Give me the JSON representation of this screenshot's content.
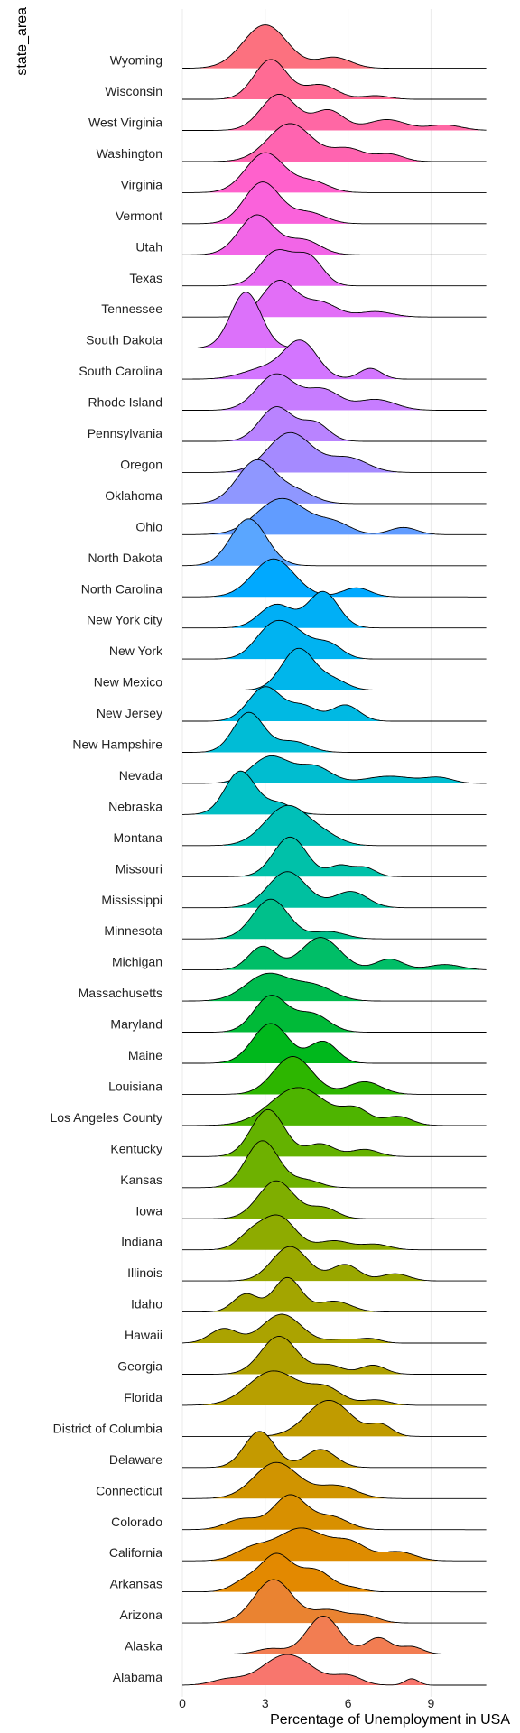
{
  "chart_data": {
    "type": "ridgeline",
    "title": "",
    "xlabel": "Percentage of Unemployment in USA",
    "ylabel": "state_area",
    "xlim": [
      0,
      11
    ],
    "x_ticks": [
      0,
      3,
      6,
      9
    ],
    "grid": true,
    "legend": "none",
    "series": [
      {
        "name": "Alabama",
        "color": "#F8766D",
        "peaks": [
          [
            1.6,
            0.15,
            0.55
          ],
          [
            3.8,
            0.85,
            0.9
          ],
          [
            6,
            0.25,
            0.5
          ],
          [
            8.3,
            0.18,
            0.25
          ]
        ]
      },
      {
        "name": "Alaska",
        "color": "#F27D52",
        "peaks": [
          [
            3.2,
            0.15,
            0.5
          ],
          [
            5.1,
            1.05,
            0.6
          ],
          [
            7.1,
            0.45,
            0.45
          ],
          [
            8.3,
            0.2,
            0.4
          ]
        ]
      },
      {
        "name": "Arizona",
        "color": "#EA8331",
        "peaks": [
          [
            3.3,
            1.2,
            0.7
          ],
          [
            5.3,
            0.35,
            0.6
          ],
          [
            6.6,
            0.2,
            0.5
          ]
        ]
      },
      {
        "name": "Arkansas",
        "color": "#E38900",
        "peaks": [
          [
            2.3,
            0.3,
            0.5
          ],
          [
            3.4,
            1.0,
            0.55
          ],
          [
            4.8,
            0.6,
            0.6
          ],
          [
            6.2,
            0.1,
            0.4
          ]
        ]
      },
      {
        "name": "California",
        "color": "#DE8C00",
        "peaks": [
          [
            2.5,
            0.3,
            0.6
          ],
          [
            4.3,
            0.9,
            0.9
          ],
          [
            6.1,
            0.45,
            0.6
          ],
          [
            7.8,
            0.25,
            0.6
          ]
        ]
      },
      {
        "name": "Colorado",
        "color": "#D89000",
        "peaks": [
          [
            2.2,
            0.3,
            0.6
          ],
          [
            3.9,
            0.95,
            0.6
          ],
          [
            5.4,
            0.35,
            0.6
          ]
        ]
      },
      {
        "name": "Connecticut",
        "color": "#D09400",
        "peaks": [
          [
            3.4,
            1.0,
            0.8
          ],
          [
            5.6,
            0.35,
            0.7
          ]
        ]
      },
      {
        "name": "Delaware",
        "color": "#C49A00",
        "peaks": [
          [
            2.8,
            1.0,
            0.55
          ],
          [
            5.0,
            0.5,
            0.55
          ]
        ]
      },
      {
        "name": "District of Columbia",
        "color": "#C09B00",
        "peaks": [
          [
            5.3,
            1.0,
            0.8
          ],
          [
            7.2,
            0.3,
            0.4
          ]
        ]
      },
      {
        "name": "Florida",
        "color": "#B79F00",
        "peaks": [
          [
            3.3,
            0.95,
            0.9
          ],
          [
            5.2,
            0.45,
            0.6
          ],
          [
            7,
            0.15,
            0.5
          ]
        ]
      },
      {
        "name": "Georgia",
        "color": "#AFA100",
        "peaks": [
          [
            3.5,
            1.05,
            0.65
          ],
          [
            5.3,
            0.25,
            0.5
          ],
          [
            6.9,
            0.25,
            0.45
          ]
        ]
      },
      {
        "name": "Hawaii",
        "color": "#ABA300",
        "peaks": [
          [
            1.5,
            0.4,
            0.5
          ],
          [
            3.6,
            0.8,
            0.7
          ],
          [
            5.8,
            0.1,
            0.5
          ],
          [
            6.8,
            0.12,
            0.4
          ]
        ]
      },
      {
        "name": "Idaho",
        "color": "#A3A500",
        "peaks": [
          [
            2.3,
            0.5,
            0.45
          ],
          [
            3.8,
            0.95,
            0.5
          ],
          [
            5.5,
            0.3,
            0.6
          ]
        ]
      },
      {
        "name": "Illinois",
        "color": "#9AA800",
        "peaks": [
          [
            3.9,
            0.95,
            0.65
          ],
          [
            5.9,
            0.45,
            0.5
          ],
          [
            7.7,
            0.2,
            0.5
          ]
        ]
      },
      {
        "name": "Indiana",
        "color": "#8EAB00",
        "peaks": [
          [
            2.5,
            0.4,
            0.5
          ],
          [
            3.5,
            0.9,
            0.6
          ],
          [
            5.5,
            0.25,
            0.6
          ],
          [
            7,
            0.15,
            0.5
          ]
        ]
      },
      {
        "name": "Iowa",
        "color": "#7FAE00",
        "peaks": [
          [
            3.4,
            1.05,
            0.65
          ],
          [
            5.1,
            0.3,
            0.5
          ]
        ]
      },
      {
        "name": "Kansas",
        "color": "#6EB100",
        "peaks": [
          [
            2.9,
            1.3,
            0.6
          ],
          [
            4.5,
            0.2,
            0.5
          ]
        ]
      },
      {
        "name": "Kentucky",
        "color": "#64B200",
        "peaks": [
          [
            3.1,
            1.3,
            0.6
          ],
          [
            5.0,
            0.35,
            0.5
          ],
          [
            6.6,
            0.2,
            0.5
          ]
        ]
      },
      {
        "name": "Los Angeles County",
        "color": "#4EB400",
        "peaks": [
          [
            4.2,
            1.05,
            1.0
          ],
          [
            6.3,
            0.4,
            0.5
          ],
          [
            7.8,
            0.25,
            0.5
          ]
        ]
      },
      {
        "name": "Louisiana",
        "color": "#2DB600",
        "peaks": [
          [
            4.0,
            1.05,
            0.7
          ],
          [
            6.6,
            0.35,
            0.6
          ]
        ]
      },
      {
        "name": "Maine",
        "color": "#00B81C",
        "peaks": [
          [
            3.2,
            1.1,
            0.65
          ],
          [
            5.1,
            0.6,
            0.5
          ]
        ]
      },
      {
        "name": "Maryland",
        "color": "#00BA38",
        "peaks": [
          [
            3.2,
            1.0,
            0.6
          ],
          [
            4.7,
            0.5,
            0.6
          ]
        ]
      },
      {
        "name": "Massachusetts",
        "color": "#00BB4E",
        "peaks": [
          [
            3.1,
            0.75,
            0.8
          ],
          [
            4.8,
            0.4,
            0.7
          ]
        ]
      },
      {
        "name": "Michigan",
        "color": "#00BE67",
        "peaks": [
          [
            2.9,
            0.65,
            0.5
          ],
          [
            5.0,
            0.9,
            0.7
          ],
          [
            7.5,
            0.3,
            0.5
          ],
          [
            9.5,
            0.15,
            0.6
          ]
        ]
      },
      {
        "name": "Minnesota",
        "color": "#00C08B",
        "peaks": [
          [
            3.2,
            1.1,
            0.65
          ],
          [
            5.3,
            0.2,
            0.6
          ]
        ]
      },
      {
        "name": "Mississippi",
        "color": "#00C0A0",
        "peaks": [
          [
            3.8,
            1.0,
            0.7
          ],
          [
            6.1,
            0.45,
            0.6
          ]
        ]
      },
      {
        "name": "Missouri",
        "color": "#00C1A9",
        "peaks": [
          [
            3.9,
            1.1,
            0.6
          ],
          [
            5.7,
            0.3,
            0.4
          ],
          [
            6.6,
            0.25,
            0.4
          ]
        ]
      },
      {
        "name": "Montana",
        "color": "#00C0B8",
        "peaks": [
          [
            3.8,
            1.1,
            0.8
          ],
          [
            5.2,
            0.2,
            0.6
          ]
        ]
      },
      {
        "name": "Nebraska",
        "color": "#00BFC4",
        "peaks": [
          [
            2.1,
            1.2,
            0.55
          ],
          [
            3.5,
            0.3,
            0.5
          ]
        ]
      },
      {
        "name": "Nevada",
        "color": "#00BDD0",
        "peaks": [
          [
            3.2,
            0.75,
            0.7
          ],
          [
            4.8,
            0.45,
            0.6
          ],
          [
            7.5,
            0.2,
            0.9
          ],
          [
            9.3,
            0.15,
            0.5
          ]
        ]
      },
      {
        "name": "New Hampshire",
        "color": "#00BCD6",
        "peaks": [
          [
            2.4,
            1.1,
            0.55
          ],
          [
            4.0,
            0.3,
            0.6
          ]
        ]
      },
      {
        "name": "New Jersey",
        "color": "#00B9E3",
        "peaks": [
          [
            3.0,
            0.95,
            0.6
          ],
          [
            4.4,
            0.4,
            0.5
          ],
          [
            5.9,
            0.45,
            0.5
          ]
        ]
      },
      {
        "name": "New Mexico",
        "color": "#00B6EB",
        "peaks": [
          [
            4.2,
            1.15,
            0.6
          ],
          [
            5.5,
            0.25,
            0.5
          ]
        ]
      },
      {
        "name": "New York",
        "color": "#00B3F1",
        "peaks": [
          [
            3.2,
            0.8,
            0.6
          ],
          [
            4.1,
            0.6,
            0.6
          ],
          [
            5.3,
            0.4,
            0.5
          ]
        ]
      },
      {
        "name": "New York city",
        "color": "#00AFF6",
        "peaks": [
          [
            3.4,
            0.65,
            0.6
          ],
          [
            5.1,
            1.0,
            0.55
          ]
        ]
      },
      {
        "name": "North Carolina",
        "color": "#00A9FF",
        "peaks": [
          [
            3.3,
            1.05,
            0.75
          ],
          [
            6.3,
            0.25,
            0.5
          ]
        ]
      },
      {
        "name": "North Dakota",
        "color": "#5AA6FF",
        "peaks": [
          [
            2.4,
            1.3,
            0.65
          ]
        ]
      },
      {
        "name": "Ohio",
        "color": "#619CFF",
        "peaks": [
          [
            3.6,
            1.0,
            0.9
          ],
          [
            5.5,
            0.3,
            0.6
          ],
          [
            8,
            0.2,
            0.5
          ]
        ]
      },
      {
        "name": "Oklahoma",
        "color": "#8F97FF",
        "peaks": [
          [
            2.7,
            1.2,
            0.7
          ],
          [
            4.2,
            0.3,
            0.6
          ]
        ]
      },
      {
        "name": "Oregon",
        "color": "#A58AFF",
        "peaks": [
          [
            3.9,
            1.1,
            0.8
          ],
          [
            6,
            0.4,
            0.7
          ]
        ]
      },
      {
        "name": "Pennsylvania",
        "color": "#B983FF",
        "peaks": [
          [
            3.4,
            0.95,
            0.6
          ],
          [
            4.8,
            0.5,
            0.5
          ]
        ]
      },
      {
        "name": "Rhode Island",
        "color": "#C77CFF",
        "peaks": [
          [
            3.4,
            1.0,
            0.7
          ],
          [
            5.1,
            0.55,
            0.6
          ],
          [
            7,
            0.3,
            0.7
          ]
        ]
      },
      {
        "name": "South Carolina",
        "color": "#D375FF",
        "peaks": [
          [
            3.0,
            0.3,
            0.8
          ],
          [
            4.3,
            1.0,
            0.6
          ],
          [
            6.8,
            0.3,
            0.4
          ]
        ]
      },
      {
        "name": "South Dakota",
        "color": "#DC71FA",
        "peaks": [
          [
            2.3,
            1.55,
            0.55
          ]
        ]
      },
      {
        "name": "Tennessee",
        "color": "#E26EF7",
        "peaks": [
          [
            3.5,
            1.0,
            0.6
          ],
          [
            5.0,
            0.4,
            0.6
          ],
          [
            7,
            0.15,
            0.6
          ]
        ]
      },
      {
        "name": "Texas",
        "color": "#E76BF3",
        "peaks": [
          [
            3.4,
            0.95,
            0.6
          ],
          [
            4.6,
            0.75,
            0.5
          ]
        ]
      },
      {
        "name": "Utah",
        "color": "#F265E7",
        "peaks": [
          [
            2.7,
            1.1,
            0.65
          ],
          [
            4.4,
            0.4,
            0.6
          ]
        ]
      },
      {
        "name": "Vermont",
        "color": "#FA62DB",
        "peaks": [
          [
            2.9,
            1.15,
            0.65
          ],
          [
            4.6,
            0.3,
            0.6
          ]
        ]
      },
      {
        "name": "Virginia",
        "color": "#FF61CC",
        "peaks": [
          [
            3.0,
            1.1,
            0.7
          ],
          [
            4.7,
            0.3,
            0.6
          ]
        ]
      },
      {
        "name": "Washington",
        "color": "#FF64B0",
        "peaks": [
          [
            3.9,
            1.05,
            0.8
          ],
          [
            6,
            0.35,
            0.6
          ],
          [
            7.5,
            0.2,
            0.5
          ]
        ]
      },
      {
        "name": "West Virginia",
        "color": "#FF67A4",
        "peaks": [
          [
            3.5,
            1.0,
            0.65
          ],
          [
            5.3,
            0.55,
            0.55
          ],
          [
            7.4,
            0.3,
            0.7
          ],
          [
            9.5,
            0.15,
            0.6
          ]
        ]
      },
      {
        "name": "Wisconsin",
        "color": "#FF6B94",
        "peaks": [
          [
            3.2,
            1.1,
            0.6
          ],
          [
            5.0,
            0.4,
            0.6
          ],
          [
            7,
            0.1,
            0.5
          ]
        ]
      },
      {
        "name": "Wyoming",
        "color": "#FC717F",
        "peaks": [
          [
            3.0,
            1.2,
            0.8
          ],
          [
            5.5,
            0.3,
            0.6
          ]
        ]
      }
    ]
  }
}
